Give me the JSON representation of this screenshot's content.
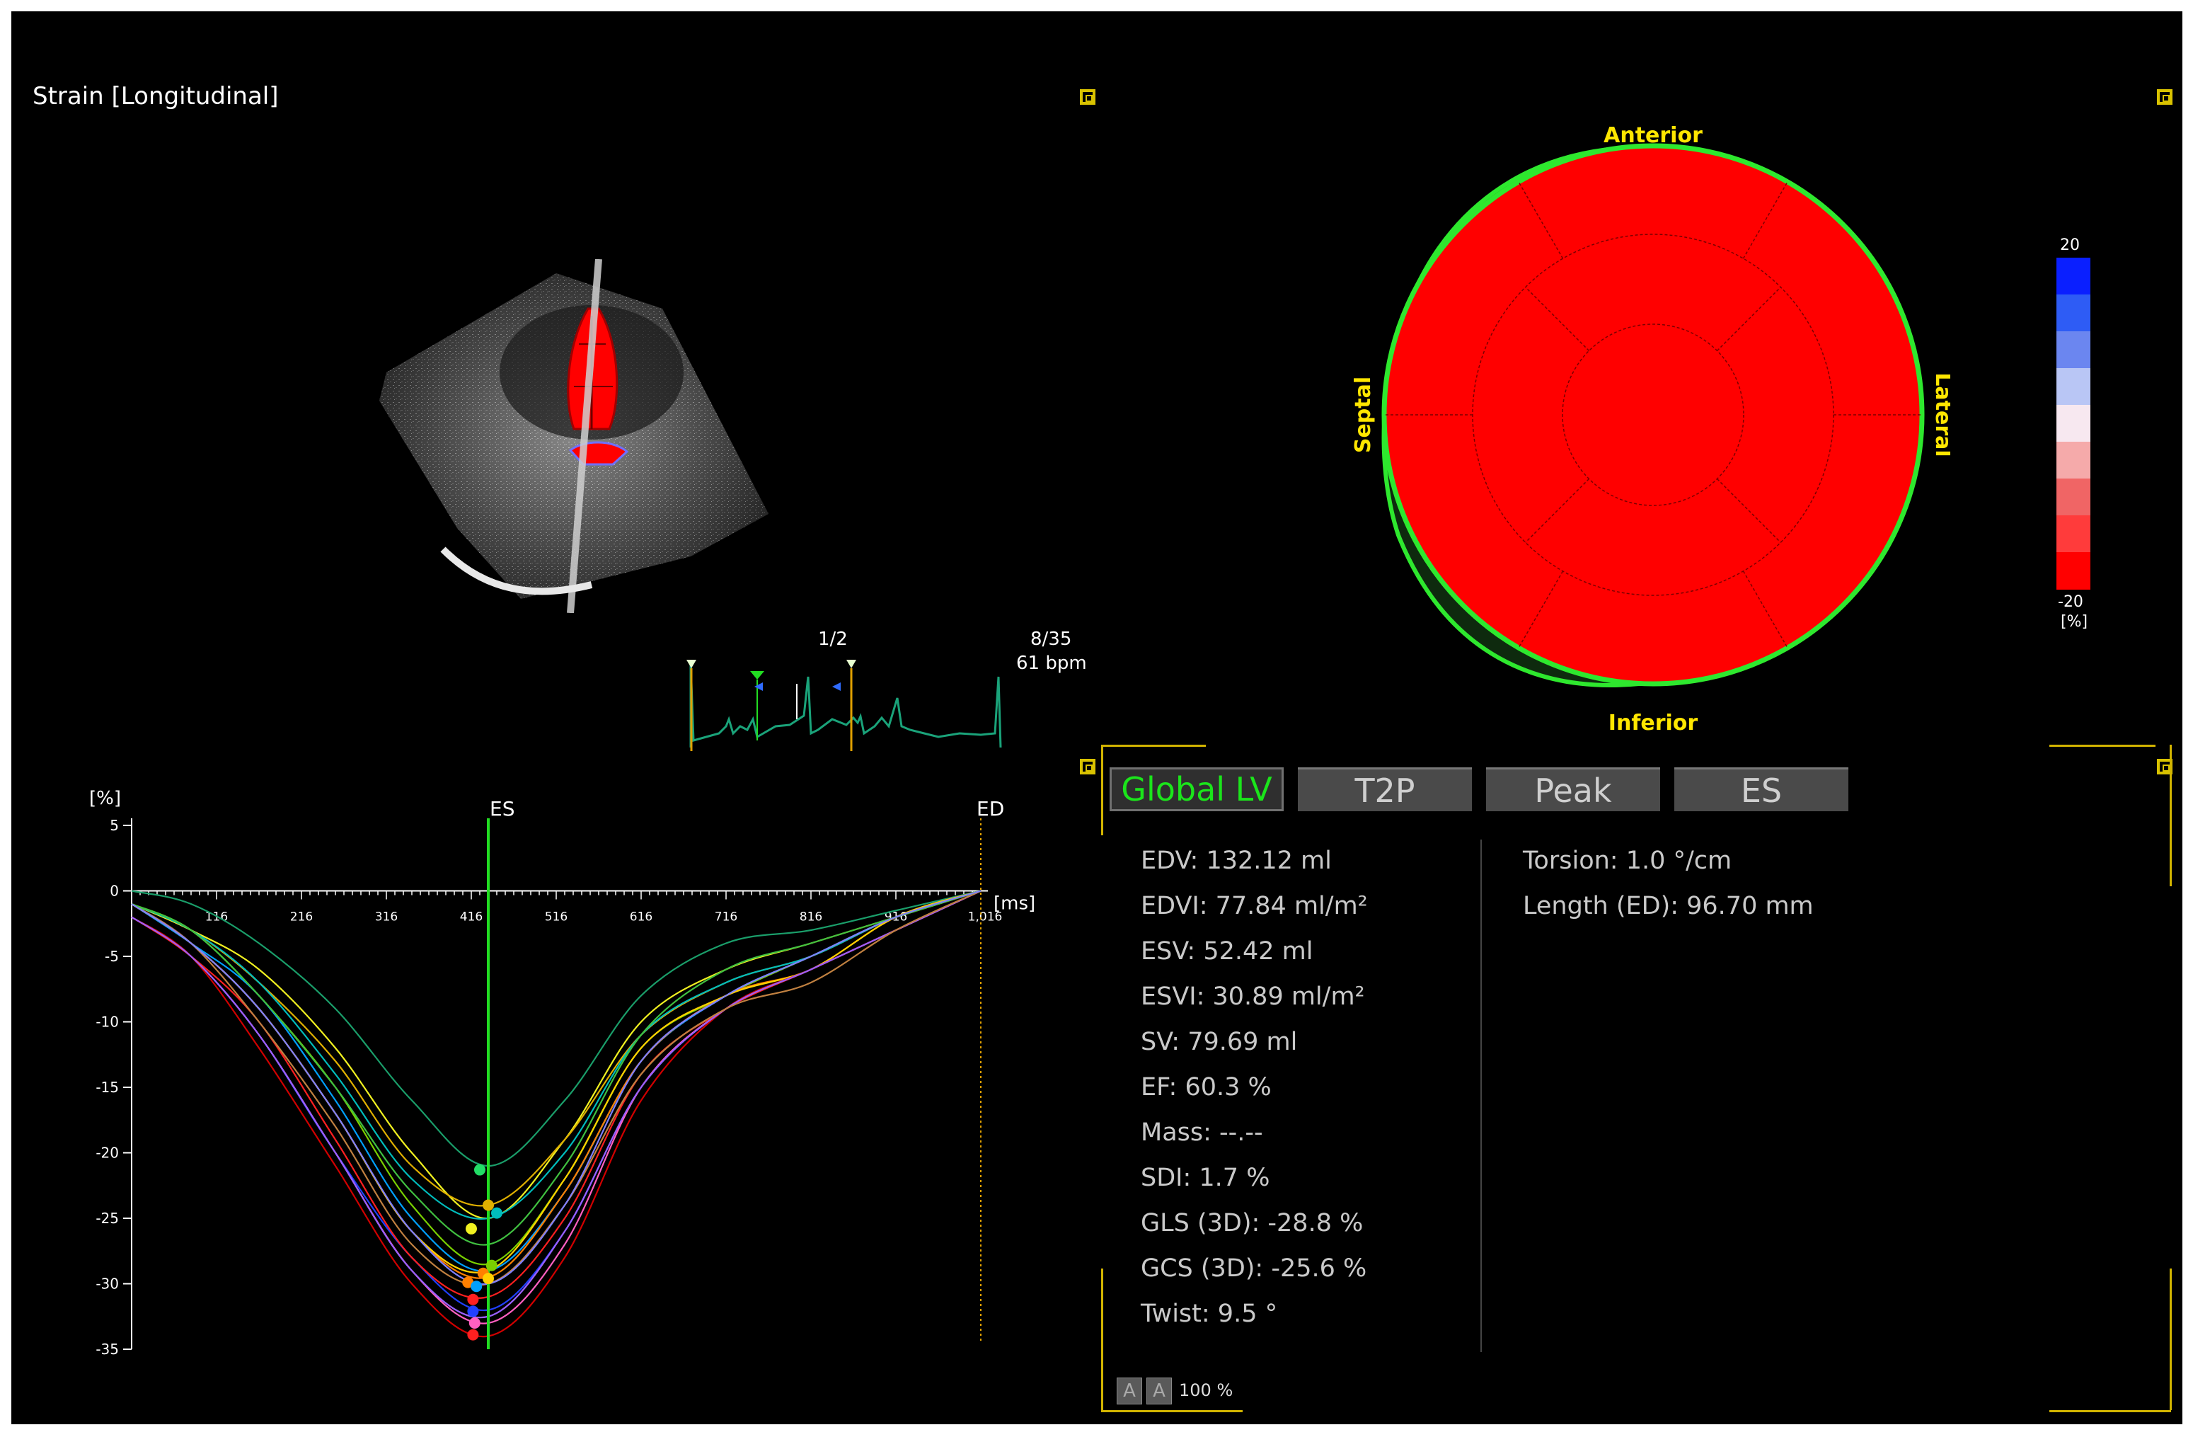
{
  "view": {
    "title": "Strain [Longitudinal]"
  },
  "ecg": {
    "beat_counter": "1/2",
    "frame_counter": "8/35",
    "heart_rate": "61 bpm"
  },
  "bullseye": {
    "labels": {
      "top": "Anterior",
      "bottom": "Inferior",
      "left": "Septal",
      "right": "Lateral"
    },
    "segment_color": "#ff0000",
    "outline_color": "#2ee82e",
    "label_color": "#ffe600"
  },
  "colorbar": {
    "max_label": "20",
    "min_label": "-20",
    "unit_label": "[%]",
    "colors": [
      "#0a1fff",
      "#2e5cf5",
      "#6b86f0",
      "#b9c6f5",
      "#f7e8f0",
      "#f5aaaa",
      "#f06565",
      "#ff3b3b",
      "#ff0000"
    ]
  },
  "tabs": [
    {
      "label": "Global LV",
      "active": true
    },
    {
      "label": "T2P",
      "active": false
    },
    {
      "label": "Peak",
      "active": false
    },
    {
      "label": "ES",
      "active": false
    }
  ],
  "stats_left": [
    "EDV: 132.12 ml",
    "EDVI: 77.84 ml/m²",
    "ESV: 52.42 ml",
    "ESVI: 30.89 ml/m²",
    "SV: 79.69 ml",
    "EF: 60.3 %",
    "Mass: --.--",
    "SDI: 1.7 %",
    "GLS (3D): -28.8 %",
    "GCS (3D): -25.6 %",
    "Twist: 9.5 °"
  ],
  "stats_right": [
    "Torsion: 1.0 °/cm",
    "Length (ED): 96.70 mm"
  ],
  "font_buttons": [
    "A",
    "A"
  ],
  "zoom_label": "100 %",
  "chart_data": {
    "type": "line",
    "ylabel": "[%]",
    "xlabel": "[ms]",
    "ylim": [
      -35,
      5
    ],
    "xlim": [
      16,
      1016
    ],
    "yticks": [
      5,
      0,
      -5,
      -10,
      -15,
      -20,
      -25,
      -30,
      -35
    ],
    "xticks": [
      116,
      216,
      316,
      416,
      516,
      616,
      716,
      816,
      916
    ],
    "xtick_labels": [
      "116",
      "216",
      "316",
      "416",
      "516",
      "616",
      "716",
      "816",
      "916"
    ],
    "end_tick_label": "1,016",
    "markers": [
      {
        "label": "ES",
        "x": 436,
        "color": "#22dd22"
      },
      {
        "label": "ED",
        "x": 1016,
        "color": "#e0a000"
      }
    ],
    "series": [
      {
        "color": "#1a9e6a",
        "values": [
          [
            16,
            0
          ],
          [
            86,
            -1
          ],
          [
            166,
            -4
          ],
          [
            256,
            -9
          ],
          [
            346,
            -16
          ],
          [
            436,
            -21
          ],
          [
            526,
            -16
          ],
          [
            616,
            -8
          ],
          [
            716,
            -4
          ],
          [
            816,
            -3
          ],
          [
            916,
            -1.5
          ],
          [
            1016,
            0
          ]
        ]
      },
      {
        "color": "#f0f020",
        "values": [
          [
            16,
            -1
          ],
          [
            86,
            -3
          ],
          [
            166,
            -6
          ],
          [
            256,
            -12
          ],
          [
            346,
            -20
          ],
          [
            436,
            -25
          ],
          [
            526,
            -19
          ],
          [
            616,
            -10
          ],
          [
            716,
            -6
          ],
          [
            816,
            -4
          ],
          [
            916,
            -2
          ],
          [
            1016,
            0
          ]
        ]
      },
      {
        "color": "#e0b000",
        "values": [
          [
            16,
            -1
          ],
          [
            86,
            -3
          ],
          [
            166,
            -7
          ],
          [
            256,
            -13
          ],
          [
            346,
            -21
          ],
          [
            436,
            -24
          ],
          [
            526,
            -19
          ],
          [
            616,
            -11
          ],
          [
            716,
            -7
          ],
          [
            816,
            -5
          ],
          [
            916,
            -2
          ],
          [
            1016,
            0
          ]
        ]
      },
      {
        "color": "#00bcbc",
        "values": [
          [
            16,
            -1
          ],
          [
            86,
            -3
          ],
          [
            166,
            -7
          ],
          [
            256,
            -14
          ],
          [
            346,
            -22
          ],
          [
            436,
            -25
          ],
          [
            526,
            -20
          ],
          [
            616,
            -11
          ],
          [
            716,
            -7
          ],
          [
            816,
            -5
          ],
          [
            916,
            -2
          ],
          [
            1016,
            0
          ]
        ]
      },
      {
        "color": "#7ad000",
        "values": [
          [
            16,
            -1
          ],
          [
            86,
            -3
          ],
          [
            166,
            -8
          ],
          [
            256,
            -15
          ],
          [
            346,
            -24
          ],
          [
            436,
            -28.5
          ],
          [
            526,
            -22
          ],
          [
            616,
            -12
          ],
          [
            716,
            -8
          ],
          [
            816,
            -5
          ],
          [
            916,
            -2
          ],
          [
            1016,
            0
          ]
        ]
      },
      {
        "color": "#00a0ff",
        "values": [
          [
            16,
            -1
          ],
          [
            86,
            -4
          ],
          [
            166,
            -8
          ],
          [
            256,
            -16
          ],
          [
            346,
            -25
          ],
          [
            436,
            -29
          ],
          [
            526,
            -23
          ],
          [
            616,
            -13
          ],
          [
            716,
            -8
          ],
          [
            816,
            -5
          ],
          [
            916,
            -2
          ],
          [
            1016,
            0
          ]
        ]
      },
      {
        "color": "#ff8000",
        "values": [
          [
            16,
            -1
          ],
          [
            86,
            -4
          ],
          [
            166,
            -9
          ],
          [
            256,
            -17
          ],
          [
            346,
            -26
          ],
          [
            436,
            -29.5
          ],
          [
            526,
            -23
          ],
          [
            616,
            -13
          ],
          [
            716,
            -8
          ],
          [
            816,
            -6
          ],
          [
            916,
            -2
          ],
          [
            1016,
            0
          ]
        ]
      },
      {
        "color": "#ffd000",
        "values": [
          [
            16,
            -1
          ],
          [
            86,
            -4
          ],
          [
            166,
            -9
          ],
          [
            256,
            -17
          ],
          [
            346,
            -26
          ],
          [
            436,
            -29
          ],
          [
            526,
            -22
          ],
          [
            616,
            -12
          ],
          [
            716,
            -8
          ],
          [
            816,
            -6
          ],
          [
            916,
            -2
          ],
          [
            1016,
            0
          ]
        ]
      },
      {
        "color": "#2040ff",
        "values": [
          [
            16,
            -2
          ],
          [
            86,
            -5
          ],
          [
            166,
            -11
          ],
          [
            256,
            -20
          ],
          [
            346,
            -28
          ],
          [
            436,
            -32
          ],
          [
            526,
            -26
          ],
          [
            616,
            -15
          ],
          [
            716,
            -9
          ],
          [
            816,
            -6
          ],
          [
            916,
            -3
          ],
          [
            1016,
            0
          ]
        ]
      },
      {
        "color": "#ff60c0",
        "values": [
          [
            16,
            -2
          ],
          [
            86,
            -5
          ],
          [
            166,
            -11
          ],
          [
            256,
            -20
          ],
          [
            346,
            -29
          ],
          [
            436,
            -33
          ],
          [
            526,
            -27
          ],
          [
            616,
            -15
          ],
          [
            716,
            -9
          ],
          [
            816,
            -6
          ],
          [
            916,
            -3
          ],
          [
            1016,
            0
          ]
        ]
      },
      {
        "color": "#ff2020",
        "values": [
          [
            16,
            -2
          ],
          [
            86,
            -5
          ],
          [
            166,
            -10
          ],
          [
            256,
            -19
          ],
          [
            346,
            -28
          ],
          [
            436,
            -31
          ],
          [
            526,
            -25
          ],
          [
            616,
            -14
          ],
          [
            716,
            -9
          ],
          [
            816,
            -6
          ],
          [
            916,
            -3
          ],
          [
            1016,
            0
          ]
        ]
      },
      {
        "color": "#d00000",
        "values": [
          [
            16,
            -2
          ],
          [
            86,
            -5
          ],
          [
            166,
            -12
          ],
          [
            256,
            -21
          ],
          [
            346,
            -30
          ],
          [
            436,
            -34
          ],
          [
            526,
            -28
          ],
          [
            616,
            -16
          ],
          [
            716,
            -9
          ],
          [
            816,
            -6
          ],
          [
            916,
            -3
          ],
          [
            1016,
            0
          ]
        ]
      },
      {
        "color": "#9a60ff",
        "values": [
          [
            16,
            -2
          ],
          [
            86,
            -5
          ],
          [
            166,
            -11
          ],
          [
            256,
            -20
          ],
          [
            346,
            -29
          ],
          [
            436,
            -32.5
          ],
          [
            526,
            -26
          ],
          [
            616,
            -15
          ],
          [
            716,
            -9
          ],
          [
            816,
            -6
          ],
          [
            916,
            -3
          ],
          [
            1016,
            0
          ]
        ]
      },
      {
        "color": "#c08040",
        "values": [
          [
            16,
            -1
          ],
          [
            86,
            -4
          ],
          [
            166,
            -10
          ],
          [
            256,
            -18
          ],
          [
            346,
            -27
          ],
          [
            436,
            -30
          ],
          [
            526,
            -24
          ],
          [
            616,
            -14
          ],
          [
            716,
            -9
          ],
          [
            816,
            -7
          ],
          [
            916,
            -3
          ],
          [
            1016,
            0
          ]
        ]
      },
      {
        "color": "#40c040",
        "values": [
          [
            16,
            -1
          ],
          [
            86,
            -3
          ],
          [
            166,
            -8
          ],
          [
            256,
            -15
          ],
          [
            346,
            -23
          ],
          [
            436,
            -27
          ],
          [
            526,
            -21
          ],
          [
            616,
            -11
          ],
          [
            716,
            -6
          ],
          [
            816,
            -4
          ],
          [
            916,
            -2
          ],
          [
            1016,
            0
          ]
        ]
      },
      {
        "color": "#8080ff",
        "values": [
          [
            16,
            -1
          ],
          [
            86,
            -4
          ],
          [
            166,
            -9
          ],
          [
            256,
            -17
          ],
          [
            346,
            -26
          ],
          [
            436,
            -30
          ],
          [
            526,
            -24
          ],
          [
            616,
            -13
          ],
          [
            716,
            -8
          ],
          [
            816,
            -5
          ],
          [
            916,
            -2
          ],
          [
            1016,
            0
          ]
        ]
      }
    ],
    "points": [
      {
        "x": 426,
        "y": -21.3,
        "color": "#22dd66"
      },
      {
        "x": 436,
        "y": -24,
        "color": "#e0b000"
      },
      {
        "x": 446,
        "y": -24.6,
        "color": "#00bcbc"
      },
      {
        "x": 416,
        "y": -25.8,
        "color": "#f0f020"
      },
      {
        "x": 440,
        "y": -28.6,
        "color": "#7ad000"
      },
      {
        "x": 430,
        "y": -29.2,
        "color": "#ff8000"
      },
      {
        "x": 436,
        "y": -29.6,
        "color": "#ffd000"
      },
      {
        "x": 412,
        "y": -29.9,
        "color": "#ff8000"
      },
      {
        "x": 422,
        "y": -30.2,
        "color": "#00a0ff"
      },
      {
        "x": 418,
        "y": -31.2,
        "color": "#ff2020"
      },
      {
        "x": 418,
        "y": -32.1,
        "color": "#2040ff"
      },
      {
        "x": 420,
        "y": -33.0,
        "color": "#ff60c0"
      },
      {
        "x": 418,
        "y": -33.9,
        "color": "#ff2020"
      }
    ]
  }
}
